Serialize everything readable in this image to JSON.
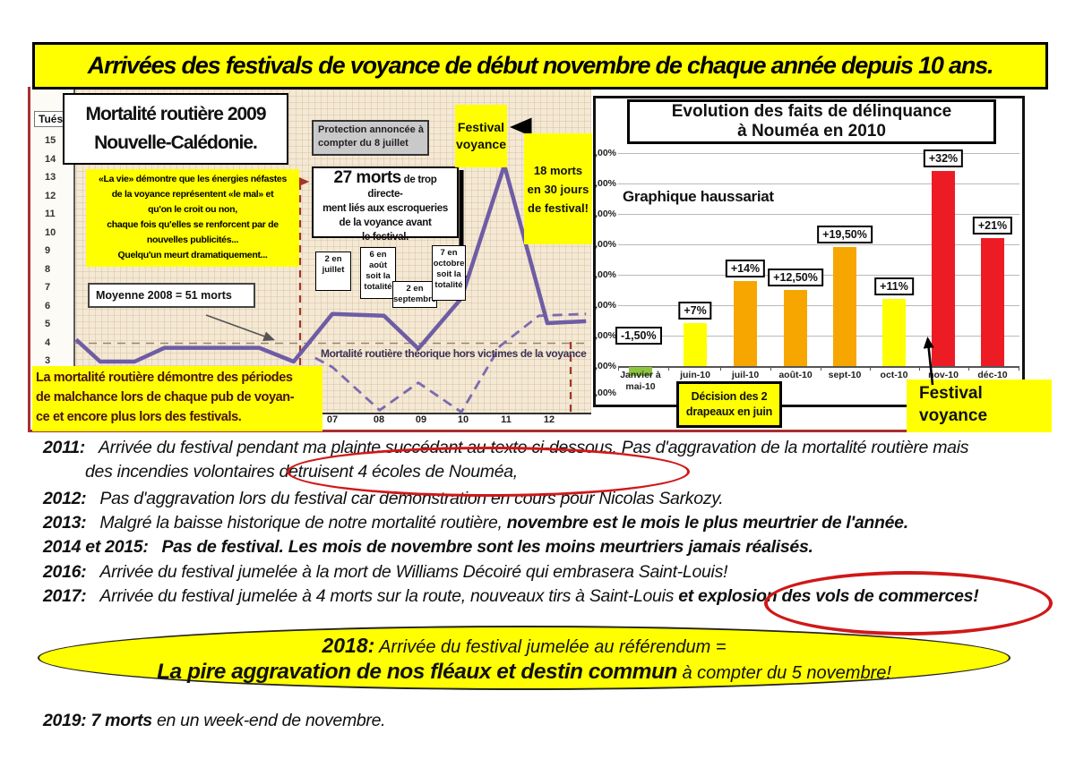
{
  "banner": {
    "title": "Arrivées des festivals de voyance de début novembre de chaque année depuis 10 ans."
  },
  "colors": {
    "banner_bg": "#ffff00",
    "accent_red": "#d01818",
    "line_purple": "#6e5ca5",
    "bar_yellow": "#ffff00",
    "bar_orange": "#f7a600",
    "bar_red": "#ed1c24",
    "bar_green": "#8cc63e"
  },
  "left_chart": {
    "y_axis_label": "Tués",
    "title": "Mortalité routière 2009\nNouvelle-Calédonie.",
    "quote": "«La vie» démontre que les énergies néfastes\nde la voyance représentent «le mal» et\nqu'on le croit ou non,\nchaque fois qu'elles se renforcent par de\nnouvelles publicités...\nQuelqu'un meurt dramatiquement...",
    "mean_box": "Moyenne 2008 = 51 morts",
    "protection_box": "Protection annoncée à\ncompter du 8 juillet",
    "deaths_box_number": "27 morts",
    "deaths_box_text": " de trop directe-\nment liés aux escroqueries\nde la voyance avant\nle festival.",
    "july_box": "2 en\njuillet",
    "august_box": "6 en\naoût\nsoit la\ntotalité",
    "september_box": "2 en\nseptembre",
    "october_box": "7 en\noctobre\nsoit la\ntotalité",
    "festival_box": "Festival\nvoyance",
    "deaths18_box": "18 morts\nen 30 jours\nde festival!",
    "dashed_line_label": "Mortalité routière théorique hors victimes de la voyance",
    "bottom_note": "La mortalité routière démontre des périodes\nde malchance lors de chaque pub de voyan-\nce et encore plus lors des festivals."
  },
  "right_chart": {
    "title": "Evolution des faits de délinquance\nà Nouméa en 2010",
    "inner_label": "Graphique haussariat",
    "decision_box": "Décision des 2\ndrapeaux en juin",
    "festival_box": "Festival\nvoyance"
  },
  "chart_data": [
    {
      "type": "line",
      "title": "Mortalité routière 2009 Nouvelle-Calédonie",
      "xlabel": "mois (07 à 12 visibles)",
      "ylabel": "Tués",
      "x_ticks_visible": [
        "07",
        "08",
        "09",
        "10",
        "11",
        "12"
      ],
      "y_ticks": [
        "15",
        "14",
        "13",
        "12",
        "11",
        "10",
        "9",
        "8",
        "7",
        "6",
        "5",
        "4",
        "3"
      ],
      "ylim": [
        2,
        15
      ],
      "series": [
        {
          "name": "Mortalité routière réelle",
          "style": "solid",
          "points": [
            [
              1.04,
              4.2
            ],
            [
              1.6,
              3
            ],
            [
              2.4,
              3
            ],
            [
              3.1,
              3.75
            ],
            [
              5.3,
              3.75
            ],
            [
              6.1,
              3
            ],
            [
              7,
              5.6
            ],
            [
              8.2,
              5.5
            ],
            [
              9,
              3.7
            ],
            [
              10,
              6.45
            ],
            [
              11,
              13.7
            ],
            [
              12,
              5.1
            ],
            [
              12.9,
              5.2
            ]
          ]
        },
        {
          "name": "Mortalité routière théorique hors victimes de la voyance",
          "style": "dashed",
          "points": [
            [
              6.6,
              3.2
            ],
            [
              7,
              2.7
            ],
            [
              8.1,
              0.35
            ],
            [
              9,
              1.85
            ],
            [
              10,
              0.25
            ],
            [
              10.9,
              3.85
            ],
            [
              11.8,
              5.5
            ],
            [
              12.9,
              5.6
            ]
          ]
        },
        {
          "name": "Moyenne 2008 = 51 morts",
          "style": "dashed-flat",
          "points": [
            [
              1.0,
              4
            ],
            [
              12.9,
              4
            ]
          ]
        }
      ],
      "annotations": [
        "Protection annoncée à compter du 8 juillet",
        "27 morts de trop directement liés aux escroqueries de la voyance avant le festival",
        "2 en juillet",
        "6 en août soit la totalité",
        "2 en septembre",
        "7 en octobre soit la totalité",
        "Festival voyance",
        "18 morts en 30 jours de festival!"
      ]
    },
    {
      "type": "bar",
      "title": "Evolution des faits de délinquance à Nouméa en 2010",
      "categories": [
        "Janvier à\nmai-10",
        "juin-10",
        "juil-10",
        "août-10",
        "sept-10",
        "oct-10",
        "nov-10",
        "déc-10"
      ],
      "values": [
        -1.5,
        7,
        14,
        12.5,
        19.5,
        11,
        32,
        21
      ],
      "bar_labels": [
        "-1,50%",
        "+7%",
        "+14%",
        "+12,50%",
        "+19,50%",
        "+11%",
        "+32%",
        "+21%"
      ],
      "bar_colors": [
        "#8cc63e",
        "#ffff00",
        "#f7a600",
        "#f7a600",
        "#f7a600",
        "#ffff00",
        "#ed1c24",
        "#ed1c24"
      ],
      "y_axis_labels": [
        ",00%",
        ",00%",
        ",00%",
        ",00%",
        ",00%",
        ",00%",
        ",00%",
        ",00%",
        ",00%"
      ],
      "ylim": [
        -5,
        35
      ],
      "grid": true,
      "legend_position": "none",
      "inner_label": "Graphique haussariat"
    }
  ],
  "timeline": [
    {
      "year": "2011:",
      "text": "Arrivée du festival pendant ma plainte succédant au texto ci-dessous. Pas d'aggravation de la mortalité routière  mais",
      "line2": "des incendies volontaires détruisent 4 écoles de Nouméa,"
    },
    {
      "year": "2012:",
      "text": "Pas d'aggravation lors du festival car démonstration en cours pour Nicolas Sarkozy."
    },
    {
      "year": "2013:",
      "pre": "Malgré la baisse historique de notre mortalité routière, ",
      "bold": "novembre est le mois le plus meurtrier de l'année."
    },
    {
      "year": "2014 et 2015:",
      "bold": "Pas de festival. Les mois de novembre sont les moins meurtriers jamais réalisés."
    },
    {
      "year": "2016:",
      "text": "Arrivée du festival jumelée à la mort de Williams Décoiré qui embrasera Saint-Louis!"
    },
    {
      "year": "2017:",
      "pre": "Arrivée du festival jumelée à 4 morts sur la route, nouveaux tirs à Saint-Louis ",
      "bold": "et explosion des vols de commerces!"
    }
  ],
  "oval_2018": {
    "year": "2018:",
    "intro": "  Arrivée du festival jumelée au référendum =",
    "headline": "La pire aggravation de nos fléaux et destin commun",
    "tail": " à compter du 5 novembre!"
  },
  "footer_2019": {
    "bold": "2019: 7 morts",
    "rest": " en un week-end de novembre."
  }
}
